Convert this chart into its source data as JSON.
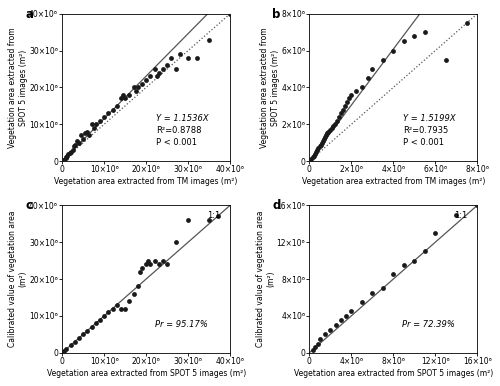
{
  "panel_a": {
    "label": "a",
    "scatter_x": [
      300000.0,
      500000.0,
      800000.0,
      1000000.0,
      1200000.0,
      1500000.0,
      1800000.0,
      2000000.0,
      2500000.0,
      2800000.0,
      3000000.0,
      3500000.0,
      4000000.0,
      4500000.0,
      5000000.0,
      5500000.0,
      6000000.0,
      6500000.0,
      7000000.0,
      7500000.0,
      8000000.0,
      9000000.0,
      10000000.0,
      11000000.0,
      12000000.0,
      13000000.0,
      14000000.0,
      14500000.0,
      15000000.0,
      16000000.0,
      17000000.0,
      17500000.0,
      18000000.0,
      19000000.0,
      20000000.0,
      21000000.0,
      22000000.0,
      22500000.0,
      23000000.0,
      24000000.0,
      25000000.0,
      26000000.0,
      27000000.0,
      28000000.0,
      30000000.0,
      32000000.0,
      35000000.0,
      40000000.0
    ],
    "scatter_y": [
      200000.0,
      400000.0,
      800000.0,
      1000000.0,
      1500000.0,
      1800000.0,
      2200000.0,
      2500000.0,
      3000000.0,
      4000000.0,
      4500000.0,
      5500000.0,
      5000000.0,
      7000000.0,
      6000000.0,
      7500000.0,
      8000000.0,
      7000000.0,
      10000000.0,
      9000000.0,
      10000000.0,
      11000000.0,
      12000000.0,
      13000000.0,
      14000000.0,
      15000000.0,
      17000000.0,
      18000000.0,
      17000000.0,
      18000000.0,
      20000000.0,
      19000000.0,
      20000000.0,
      21000000.0,
      22000000.0,
      23000000.0,
      25000000.0,
      23000000.0,
      24000000.0,
      25000000.0,
      26000000.0,
      28000000.0,
      25000000.0,
      29000000.0,
      28000000.0,
      28000000.0,
      33000000.0,
      40000000.0
    ],
    "slope": 1.1536,
    "r2": 0.8788,
    "xmax": 40000000.0,
    "ymax": 40000000.0,
    "xtick_vals": [
      0,
      10000000.0,
      20000000.0,
      30000000.0,
      40000000.0
    ],
    "xtick_labels": [
      "0",
      "10×10⁶",
      "20×10⁶",
      "30×10⁶",
      "40×10⁶"
    ],
    "ytick_vals": [
      0,
      10000000.0,
      20000000.0,
      30000000.0,
      40000000.0
    ],
    "ytick_labels": [
      "0",
      "10×10⁶",
      "20×10⁶",
      "30×10⁶",
      "40×10⁶"
    ],
    "xlabel": "Vegetation area extracted from TM images (m²)",
    "ylabel": "Vegetation area extracted from\nSPOT 5 images (m²)",
    "eq_line": "Y = 1.1536X",
    "r2_line": "R²=0.8788",
    "p_line": "P < 0.001"
  },
  "panel_b": {
    "label": "b",
    "scatter_x": [
      50000.0,
      100000.0,
      150000.0,
      200000.0,
      250000.0,
      300000.0,
      350000.0,
      400000.0,
      500000.0,
      550000.0,
      600000.0,
      650000.0,
      700000.0,
      750000.0,
      800000.0,
      850000.0,
      900000.0,
      1000000.0,
      1100000.0,
      1150000.0,
      1200000.0,
      1300000.0,
      1400000.0,
      1500000.0,
      1600000.0,
      1700000.0,
      1800000.0,
      1900000.0,
      2000000.0,
      2200000.0,
      2500000.0,
      2800000.0,
      3000000.0,
      3500000.0,
      4000000.0,
      4500000.0,
      5000000.0,
      5500000.0,
      6500000.0,
      7500000.0
    ],
    "scatter_y": [
      50000.0,
      100000.0,
      200000.0,
      300000.0,
      400000.0,
      500000.0,
      600000.0,
      700000.0,
      800000.0,
      900000.0,
      1000000.0,
      1100000.0,
      1200000.0,
      1300000.0,
      1400000.0,
      1500000.0,
      1600000.0,
      1700000.0,
      1800000.0,
      1900000.0,
      2000000.0,
      2200000.0,
      2400000.0,
      2600000.0,
      2800000.0,
      3000000.0,
      3200000.0,
      3400000.0,
      3600000.0,
      3800000.0,
      4000000.0,
      4500000.0,
      5000000.0,
      5500000.0,
      6000000.0,
      6500000.0,
      6800000.0,
      7000000.0,
      5500000.0,
      7500000.0
    ],
    "slope": 1.5199,
    "r2": 0.7935,
    "xmax": 8000000.0,
    "ymax": 8000000.0,
    "xtick_vals": [
      0,
      2000000.0,
      4000000.0,
      6000000.0,
      8000000.0
    ],
    "xtick_labels": [
      "0",
      "2×10⁶",
      "4×10⁶",
      "6×10⁶",
      "8×10⁶"
    ],
    "ytick_vals": [
      0,
      2000000.0,
      4000000.0,
      6000000.0,
      8000000.0
    ],
    "ytick_labels": [
      "0",
      "2×10⁶",
      "4×10⁶",
      "6×10⁶",
      "8×10⁶"
    ],
    "xlabel": "Vegetation area extracted from TM images (m²)",
    "ylabel": "Vegetation area extracted from\nSPOT 5 images (m²)",
    "eq_line": "Y = 1.5199X",
    "r2_line": "R²=0.7935",
    "p_line": "P < 0.001"
  },
  "panel_c": {
    "label": "c",
    "scatter_x": [
      500000.0,
      1000000.0,
      2000000.0,
      3000000.0,
      4000000.0,
      5000000.0,
      6000000.0,
      7000000.0,
      8000000.0,
      9000000.0,
      10000000.0,
      11000000.0,
      12000000.0,
      13000000.0,
      14000000.0,
      15000000.0,
      16000000.0,
      17000000.0,
      18000000.0,
      18500000.0,
      19000000.0,
      20000000.0,
      20500000.0,
      21000000.0,
      22000000.0,
      23000000.0,
      24000000.0,
      25000000.0,
      27000000.0,
      30000000.0,
      35000000.0,
      37000000.0
    ],
    "scatter_y": [
      500000.0,
      1000000.0,
      2000000.0,
      3000000.0,
      4000000.0,
      5000000.0,
      6000000.0,
      7000000.0,
      8000000.0,
      9000000.0,
      10000000.0,
      11000000.0,
      12000000.0,
      13000000.0,
      12000000.0,
      12000000.0,
      14000000.0,
      16000000.0,
      18000000.0,
      22000000.0,
      23000000.0,
      24000000.0,
      25000000.0,
      24000000.0,
      25000000.0,
      24000000.0,
      25000000.0,
      24000000.0,
      30000000.0,
      36000000.0,
      36000000.0,
      37000000.0
    ],
    "xmax": 40000000.0,
    "ymax": 40000000.0,
    "xtick_vals": [
      0,
      10000000.0,
      20000000.0,
      30000000.0,
      40000000.0
    ],
    "xtick_labels": [
      "0",
      "10×10⁶",
      "20×10⁶",
      "30×10⁶",
      "40×10⁶"
    ],
    "ytick_vals": [
      0,
      10000000.0,
      20000000.0,
      30000000.0,
      40000000.0
    ],
    "ytick_labels": [
      "0",
      "10×10⁶",
      "20×10⁶",
      "30×10⁶",
      "40×10⁶"
    ],
    "xlabel": "Vegetation area extracted from SPOT 5 images (m²)",
    "ylabel": "Calibrated value of vegetation area\n(m²)",
    "pr_text": "Pr = 95.17%",
    "annotation": "1:1"
  },
  "panel_d": {
    "label": "d",
    "scatter_x": [
      300000.0,
      500000.0,
      800000.0,
      1000000.0,
      1500000.0,
      2000000.0,
      2500000.0,
      3000000.0,
      3500000.0,
      4000000.0,
      5000000.0,
      6000000.0,
      7000000.0,
      8000000.0,
      9000000.0,
      10000000.0,
      11000000.0,
      12000000.0,
      14000000.0,
      16000000.0
    ],
    "scatter_y": [
      300000.0,
      600000.0,
      1000000.0,
      1500000.0,
      2000000.0,
      2500000.0,
      3000000.0,
      3500000.0,
      4000000.0,
      4500000.0,
      5500000.0,
      6500000.0,
      7000000.0,
      8500000.0,
      9500000.0,
      10000000.0,
      11000000.0,
      13000000.0,
      15000000.0,
      16000000.0
    ],
    "xmax": 16000000.0,
    "ymax": 16000000.0,
    "xtick_vals": [
      0,
      4000000.0,
      8000000.0,
      12000000.0,
      16000000.0
    ],
    "xtick_labels": [
      "0",
      "4×10⁶",
      "8×10⁶",
      "12×10⁶",
      "16×10⁶"
    ],
    "ytick_vals": [
      0,
      4000000.0,
      8000000.0,
      12000000.0,
      16000000.0
    ],
    "ytick_labels": [
      "0",
      "4×10⁶",
      "8×10⁶",
      "12×10⁶",
      "16×10⁶"
    ],
    "xlabel": "Vegetation area extracted from SPOT 5 images (m²)",
    "ylabel": "Calibrated value of vegetation area\n(m²)",
    "pr_text": "Pr = 72.39%",
    "annotation": "1:1"
  },
  "dot_color": "#1a1a1a",
  "dot_size": 12,
  "line_color": "#555555",
  "line_color_dark": "#222222",
  "font_size_label": 5.5,
  "font_size_tick": 5.5,
  "font_size_eq": 6.0,
  "font_size_panel": 8.5
}
